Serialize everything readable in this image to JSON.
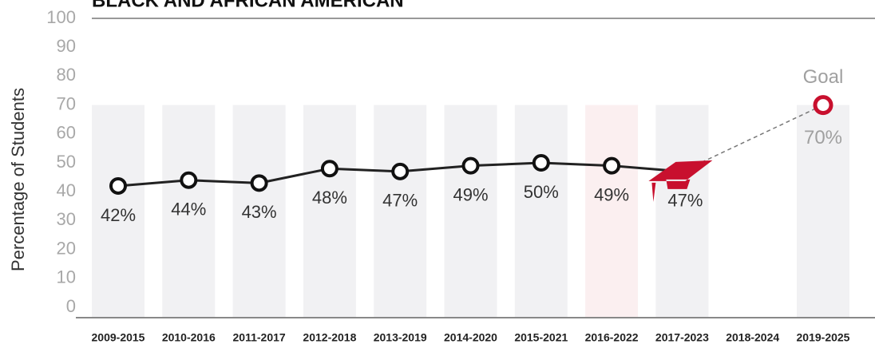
{
  "chart_data": {
    "type": "line",
    "title": "BLACK AND AFRICAN AMERICAN",
    "ylabel": "Percentage of Students",
    "categories": [
      "2009-2015",
      "2010-2016",
      "2011-2017",
      "2012-2018",
      "2013-2019",
      "2014-2020",
      "2015-2021",
      "2016-2022",
      "2017-2023",
      "2018-2024",
      "2019-2025"
    ],
    "series": [
      {
        "name": null,
        "color": "#222222",
        "values": [
          42,
          44,
          43,
          48,
          47,
          49,
          50,
          49,
          47,
          null,
          null
        ],
        "value_labels": [
          "42%",
          "44%",
          "43%",
          "48%",
          "47%",
          "49%",
          "50%",
          "49%",
          "47%",
          null,
          null
        ]
      },
      {
        "name": "Goal",
        "color": "#c8102e",
        "values": [
          null,
          null,
          null,
          null,
          null,
          null,
          null,
          null,
          null,
          null,
          70
        ],
        "value_labels": [
          null,
          null,
          null,
          null,
          null,
          null,
          null,
          null,
          null,
          null,
          "70%"
        ]
      }
    ],
    "band_colors": [
      "#f1f1f3",
      "#f1f1f3",
      "#f1f1f3",
      "#f1f1f3",
      "#f1f1f3",
      "#f1f1f3",
      "#f1f1f3",
      "#fbeff0",
      "#f1f1f3",
      null,
      "#f1f1f3"
    ],
    "ylim": [
      0,
      100
    ],
    "yticks": [
      0,
      10,
      20,
      30,
      40,
      50,
      60,
      70,
      80,
      90,
      100
    ]
  }
}
